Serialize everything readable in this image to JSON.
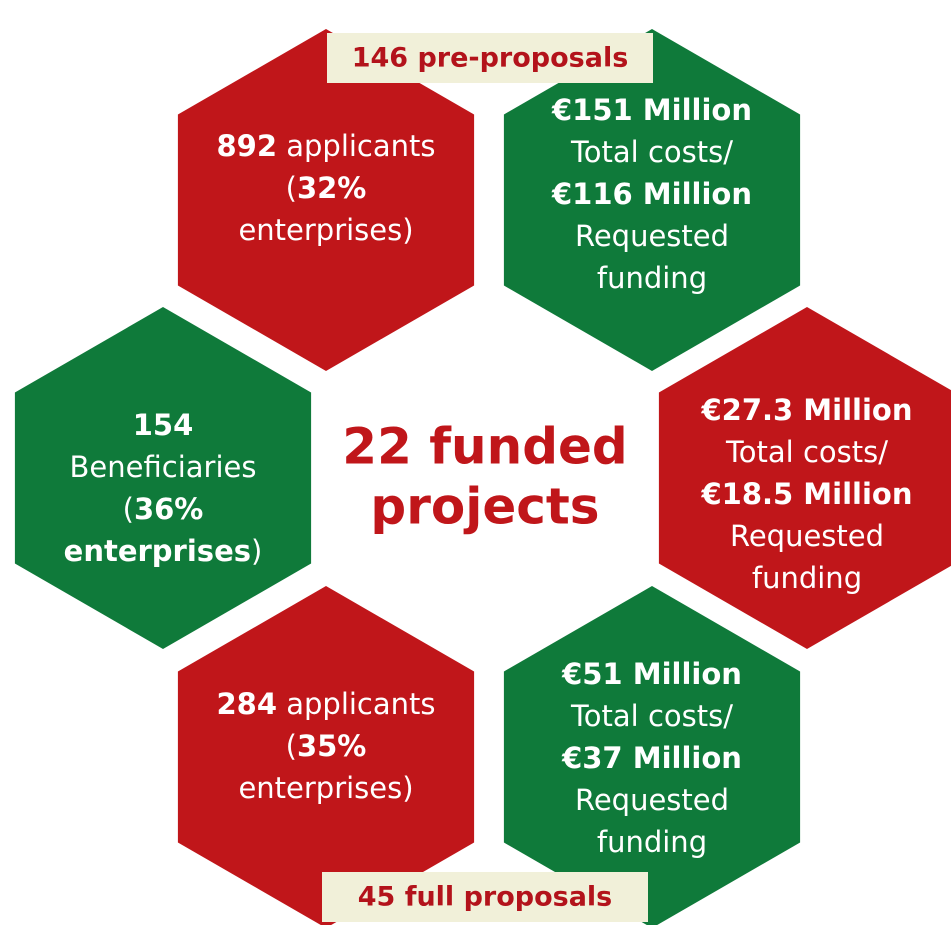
{
  "labels": {
    "top": "146 pre-proposals",
    "bottom": "45 full proposals"
  },
  "center": {
    "lines": [
      "22 funded",
      "projects"
    ],
    "color": "#c0161a"
  },
  "hexagons": [
    {
      "color": "#c0161a",
      "lines": [
        [
          {
            "text": "892",
            "bold": true
          },
          {
            "text": " applicants",
            "bold": false
          }
        ],
        [
          {
            "text": "(",
            "bold": false
          },
          {
            "text": "32%",
            "bold": true
          }
        ],
        [
          {
            "text": "enterprises)",
            "bold": false
          }
        ]
      ]
    },
    {
      "color": "#0f7a3a",
      "lines": [
        [
          {
            "text": "€151 Million",
            "bold": true
          }
        ],
        [
          {
            "text": "Total costs/",
            "bold": false
          }
        ],
        [
          {
            "text": "€116 Million",
            "bold": true
          }
        ],
        [
          {
            "text": "Requested",
            "bold": false
          }
        ],
        [
          {
            "text": "funding",
            "bold": false
          }
        ]
      ]
    },
    {
      "color": "#0f7a3a",
      "lines": [
        [
          {
            "text": "154",
            "bold": true
          }
        ],
        [
          {
            "text": "Beneficiaries",
            "bold": false
          }
        ],
        [
          {
            "text": "(",
            "bold": false
          },
          {
            "text": "36%",
            "bold": true
          }
        ],
        [
          {
            "text": "enterprises",
            "bold": true
          },
          {
            "text": ")",
            "bold": false
          }
        ]
      ]
    },
    {
      "color": "#c0161a",
      "lines": [
        [
          {
            "text": "€27.3 Million",
            "bold": true
          }
        ],
        [
          {
            "text": "Total costs/",
            "bold": false
          }
        ],
        [
          {
            "text": "€18.5 Million",
            "bold": true
          }
        ],
        [
          {
            "text": "Requested",
            "bold": false
          }
        ],
        [
          {
            "text": "funding",
            "bold": false
          }
        ]
      ]
    },
    {
      "color": "#c0161a",
      "lines": [
        [
          {
            "text": "284",
            "bold": true
          },
          {
            "text": " applicants",
            "bold": false
          }
        ],
        [
          {
            "text": "(",
            "bold": false
          },
          {
            "text": "35%",
            "bold": true
          }
        ],
        [
          {
            "text": "enterprises)",
            "bold": false
          }
        ]
      ]
    },
    {
      "color": "#0f7a3a",
      "lines": [
        [
          {
            "text": "€51 Million",
            "bold": true
          }
        ],
        [
          {
            "text": "Total costs/",
            "bold": false
          }
        ],
        [
          {
            "text": "€37 Million",
            "bold": true
          }
        ],
        [
          {
            "text": "Requested",
            "bold": false
          }
        ],
        [
          {
            "text": "funding",
            "bold": false
          }
        ]
      ]
    }
  ]
}
